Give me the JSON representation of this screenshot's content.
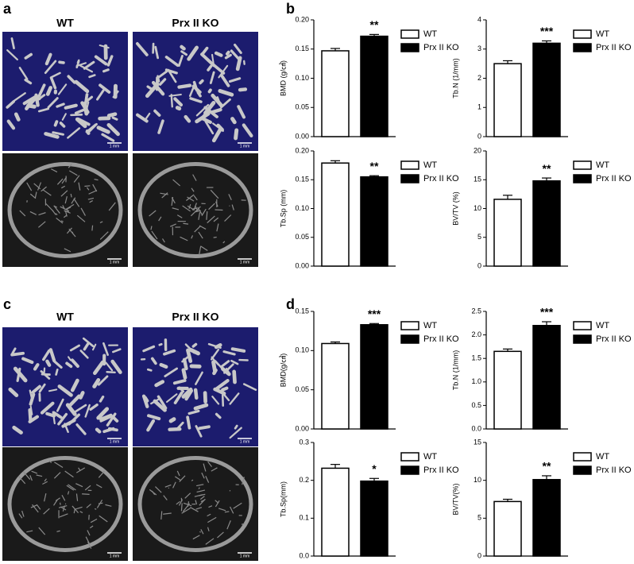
{
  "image_panels": [
    {
      "label": "a",
      "columns": [
        "WT",
        "Prx II KO"
      ],
      "scale_bar": "1 mm"
    },
    {
      "label": "c",
      "columns": [
        "WT",
        "Prx II KO"
      ],
      "scale_bar": "1 mm"
    }
  ],
  "chart_labels": [
    "b",
    "d"
  ],
  "chart_data": [
    {
      "type": "bar",
      "y_label": "BMD (g/㎤)",
      "annotation": "**",
      "ylim": [
        0,
        0.2
      ],
      "yticks": [
        {
          "value": 0,
          "label": "0.00"
        },
        0.05,
        {
          "value": 0.1,
          "label": "0.10"
        },
        0.15,
        {
          "value": 0.2,
          "label": "0.20"
        }
      ],
      "series": [
        {
          "name": "WT",
          "color": "#ffffff",
          "values": [
            0.147
          ],
          "errors": [
            0.004
          ]
        },
        {
          "name": "Prx II KO",
          "color": "#000000",
          "values": [
            0.172
          ],
          "errors": [
            0.003
          ]
        }
      ]
    },
    {
      "type": "bar",
      "y_label": "Tb.N (1/mm)",
      "annotation": "***",
      "ylim": [
        0,
        4
      ],
      "yticks": [
        0,
        1,
        2,
        3,
        4
      ],
      "series": [
        {
          "name": "WT",
          "color": "#ffffff",
          "values": [
            2.5
          ],
          "errors": [
            0.1
          ]
        },
        {
          "name": "Prx II KO",
          "color": "#000000",
          "values": [
            3.2
          ],
          "errors": [
            0.08
          ]
        }
      ]
    },
    {
      "type": "bar",
      "y_label": "Tb.Sp (mm)",
      "annotation": "**",
      "ylim": [
        0,
        0.2
      ],
      "yticks": [
        {
          "value": 0,
          "label": "0.00"
        },
        0.05,
        {
          "value": 0.1,
          "label": "0.10"
        },
        0.15,
        {
          "value": 0.2,
          "label": "0.20"
        }
      ],
      "series": [
        {
          "name": "WT",
          "color": "#ffffff",
          "values": [
            0.179
          ],
          "errors": [
            0.004
          ]
        },
        {
          "name": "Prx II KO",
          "color": "#000000",
          "values": [
            0.155
          ],
          "errors": [
            0.002
          ]
        }
      ]
    },
    {
      "type": "bar",
      "y_label": "BV/TV (%)",
      "annotation": "**",
      "ylim": [
        0,
        20
      ],
      "yticks": [
        0,
        5,
        10,
        15,
        20
      ],
      "series": [
        {
          "name": "WT",
          "color": "#ffffff",
          "values": [
            11.6
          ],
          "errors": [
            0.7
          ]
        },
        {
          "name": "Prx II KO",
          "color": "#000000",
          "values": [
            14.8
          ],
          "errors": [
            0.5
          ]
        }
      ]
    },
    {
      "type": "bar",
      "y_label": "BMD(g/㎤)",
      "annotation": "***",
      "ylim": [
        0,
        0.15
      ],
      "yticks": [
        {
          "value": 0,
          "label": "0.00"
        },
        0.05,
        {
          "value": 0.1,
          "label": "0.10"
        },
        0.15
      ],
      "series": [
        {
          "name": "WT",
          "color": "#ffffff",
          "values": [
            0.109
          ],
          "errors": [
            0.002
          ]
        },
        {
          "name": "Prx II KO",
          "color": "#000000",
          "values": [
            0.133
          ],
          "errors": [
            0.0015
          ]
        }
      ]
    },
    {
      "type": "bar",
      "y_label": "Tb.N (1/mm)",
      "annotation": "***",
      "ylim": [
        0,
        2.5
      ],
      "yticks": [
        {
          "value": 0,
          "label": "0.0"
        },
        0.5,
        {
          "value": 1,
          "label": "1.0"
        },
        1.5,
        {
          "value": 2,
          "label": "2.0"
        },
        2.5
      ],
      "series": [
        {
          "name": "WT",
          "color": "#ffffff",
          "values": [
            1.65
          ],
          "errors": [
            0.05
          ]
        },
        {
          "name": "Prx II KO",
          "color": "#000000",
          "values": [
            2.2
          ],
          "errors": [
            0.08
          ]
        }
      ]
    },
    {
      "type": "bar",
      "y_label": "Tb.Sp(mm)",
      "annotation": "*",
      "ylim": [
        0,
        0.3
      ],
      "yticks": [
        {
          "value": 0,
          "label": "0.0"
        },
        0.1,
        0.2,
        0.3
      ],
      "series": [
        {
          "name": "WT",
          "color": "#ffffff",
          "values": [
            0.232
          ],
          "errors": [
            0.01
          ]
        },
        {
          "name": "Prx II KO",
          "color": "#000000",
          "values": [
            0.198
          ],
          "errors": [
            0.007
          ]
        }
      ]
    },
    {
      "type": "bar",
      "y_label": "BV/TV(%)",
      "annotation": "**",
      "ylim": [
        0,
        15
      ],
      "yticks": [
        0,
        5,
        10,
        15
      ],
      "series": [
        {
          "name": "WT",
          "color": "#ffffff",
          "values": [
            7.2
          ],
          "errors": [
            0.3
          ]
        },
        {
          "name": "Prx II KO",
          "color": "#000000",
          "values": [
            10.1
          ],
          "errors": [
            0.5
          ]
        }
      ]
    }
  ]
}
